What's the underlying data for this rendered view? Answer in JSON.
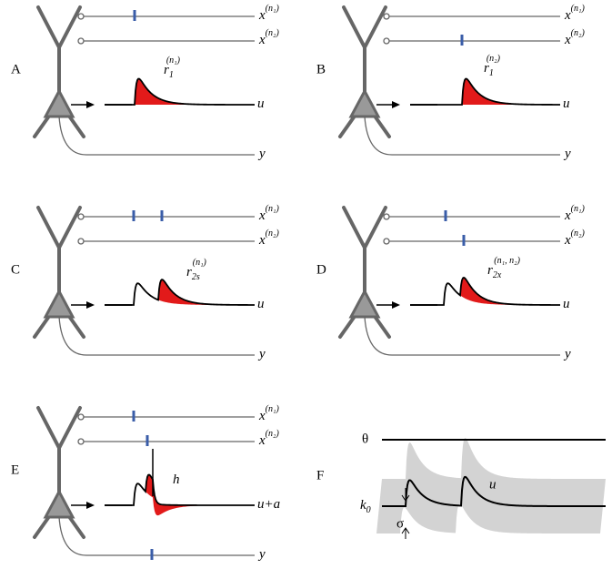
{
  "panels": [
    {
      "label": "A",
      "inputs": [
        {
          "base": "x",
          "sup": "(n₁)"
        },
        {
          "base": "x",
          "sup": "(n₂)"
        }
      ],
      "output": {
        "base": "u"
      },
      "soma_out": {
        "base": "y"
      },
      "psp": {
        "base": "r",
        "sub": "1",
        "sup": "(n₁)"
      }
    },
    {
      "label": "B",
      "inputs": [
        {
          "base": "x",
          "sup": "(n₁)"
        },
        {
          "base": "x",
          "sup": "(n₂)"
        }
      ],
      "output": {
        "base": "u"
      },
      "soma_out": {
        "base": "y"
      },
      "psp": {
        "base": "r",
        "sub": "1",
        "sup": "(n₂)"
      }
    },
    {
      "label": "C",
      "inputs": [
        {
          "base": "x",
          "sup": "(n₁)"
        },
        {
          "base": "x",
          "sup": "(n₂)"
        }
      ],
      "output": {
        "base": "u"
      },
      "soma_out": {
        "base": "y"
      },
      "psp": {
        "base": "r",
        "sub": "2s",
        "sup": "(n₁)"
      }
    },
    {
      "label": "D",
      "inputs": [
        {
          "base": "x",
          "sup": "(n₁)"
        },
        {
          "base": "x",
          "sup": "(n₂)"
        }
      ],
      "output": {
        "base": "u"
      },
      "soma_out": {
        "base": "y"
      },
      "psp": {
        "base": "r",
        "sub": "2x",
        "sup": "(n₁, n₂)"
      }
    },
    {
      "label": "E",
      "inputs": [
        {
          "base": "x",
          "sup": "(n₁)"
        },
        {
          "base": "x",
          "sup": "(n₂)"
        }
      ],
      "output": {
        "base": "u+a"
      },
      "soma_out": {
        "base": "y"
      },
      "psp": {
        "base": "h"
      }
    },
    {
      "label": "F",
      "theta": "θ",
      "k": {
        "base": "k",
        "sub": "0"
      },
      "sigma": "σ",
      "u": "u"
    }
  ]
}
